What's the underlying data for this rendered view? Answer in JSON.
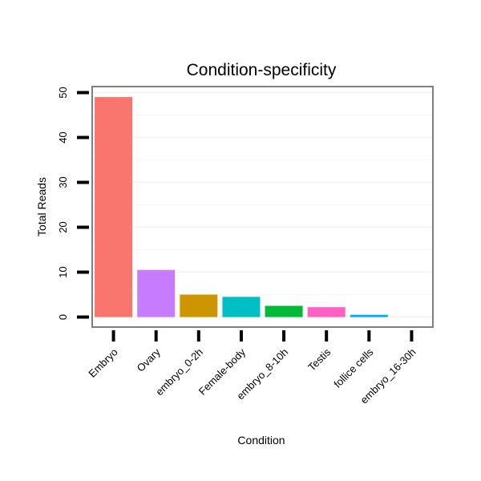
{
  "chart_data": {
    "type": "bar",
    "title": "Condition-specificity",
    "xlabel": "Condition",
    "ylabel": "Total Reads",
    "ylim": [
      0,
      52
    ],
    "yticks": [
      0,
      10,
      20,
      30,
      40,
      50
    ],
    "grid": true,
    "legend": "none",
    "categories": [
      "Embryo",
      "Ovary",
      "embryo_0-2h",
      "Female-body",
      "embryo_8-10h",
      "Testis",
      "follice cells",
      "embryo_16-30h"
    ],
    "values": [
      49,
      10.5,
      5,
      4.5,
      2.5,
      2.2,
      0.5,
      0
    ],
    "colors": [
      "#F8766D",
      "#C77CFF",
      "#CD9600",
      "#00BFC4",
      "#00BA38",
      "#FF61C3",
      "#00A9FF",
      "#7CAE00"
    ]
  }
}
